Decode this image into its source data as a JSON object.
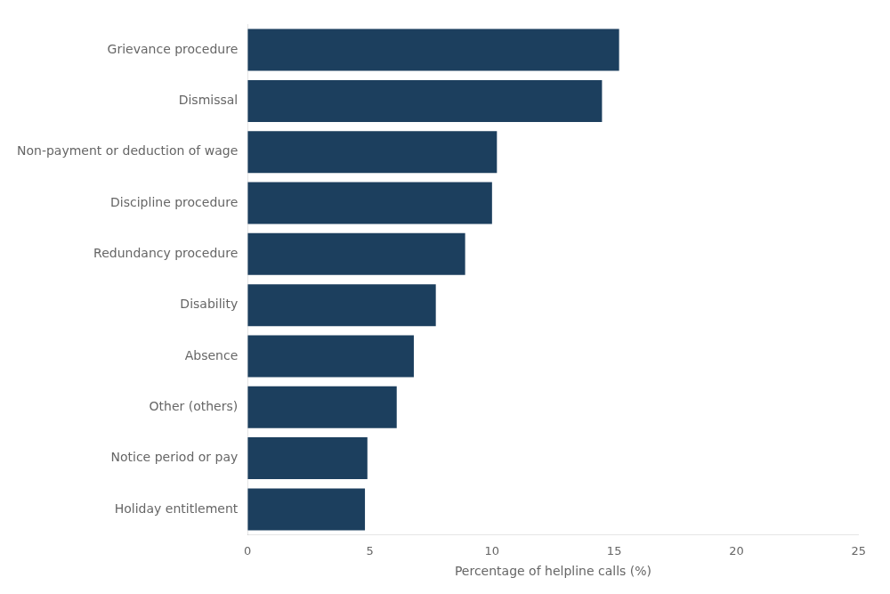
{
  "chart_data": {
    "type": "bar",
    "orientation": "horizontal",
    "categories": [
      "Holiday entitlement",
      "Notice period or pay",
      "Other (others)",
      "Absence",
      "Disability",
      "Redundancy procedure",
      "Discipline procedure",
      "Non-payment or deduction of wage",
      "Dismissal",
      "Grievance procedure"
    ],
    "values": [
      4.8,
      4.9,
      6.1,
      6.8,
      7.7,
      8.9,
      10.0,
      10.2,
      14.5,
      15.2
    ],
    "color": "#1c3f5e",
    "xlabel": "Percentage of helpline calls (%)",
    "xlim": [
      0,
      25
    ],
    "xticks": [
      0,
      5,
      10,
      15,
      20,
      25
    ],
    "grid": false
  }
}
